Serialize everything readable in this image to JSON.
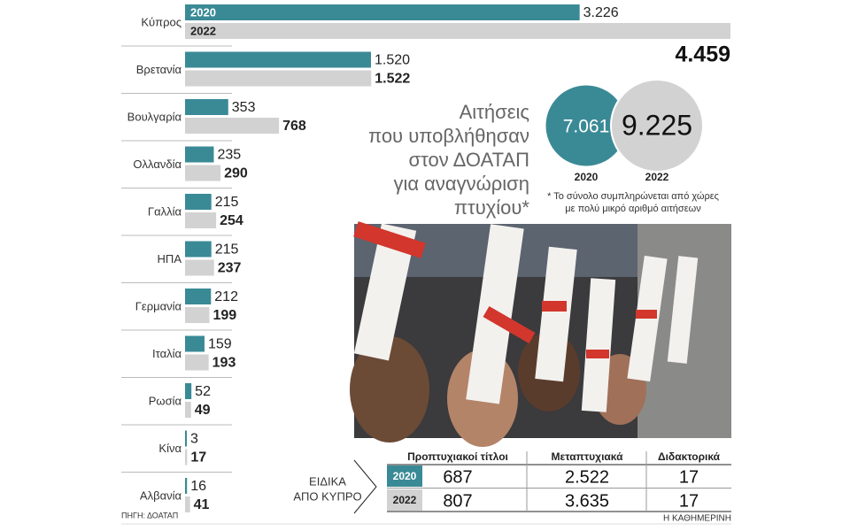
{
  "chart_data": {
    "type": "hbar",
    "title_lines": [
      "Αιτήσεις",
      "που υποβλήθησαν",
      "στον ΔΟΑΤΑΠ",
      "για αναγνώριση",
      "πτυχίου*"
    ],
    "categories": [
      "Κύπρος",
      "Βρετανία",
      "Βουλγαρία",
      "Ολλανδία",
      "Γαλλία",
      "ΗΠΑ",
      "Γερμανία",
      "Ιταλία",
      "Ρωσία",
      "Κίνα",
      "Αλβανία"
    ],
    "series": [
      {
        "name": "2020",
        "color": "#3a8a96",
        "values": [
          3226,
          1520,
          353,
          235,
          215,
          215,
          212,
          159,
          52,
          3,
          16
        ],
        "value_labels": [
          "3.226",
          "1.520",
          "353",
          "235",
          "215",
          "215",
          "212",
          "159",
          "52",
          "3",
          "16"
        ]
      },
      {
        "name": "2022",
        "color": "#d2d2d2",
        "values": [
          4459,
          1522,
          768,
          290,
          254,
          237,
          199,
          193,
          49,
          17,
          41
        ],
        "value_labels": [
          "4.459",
          "1.522",
          "768",
          "290",
          "254",
          "237",
          "199",
          "193",
          "49",
          "17",
          "41"
        ]
      }
    ],
    "totals": [
      {
        "name": "2020",
        "value": 7061,
        "value_label": "7.061",
        "color": "#3a8a96"
      },
      {
        "name": "2022",
        "value": 9225,
        "value_label": "9.225",
        "color": "#d2d2d2"
      }
    ],
    "footnote_lines": [
      "* Το σύνολο συμπληρώνεται από χώρες",
      "με πολύ μικρό αριθμό αιτήσεων"
    ],
    "source": "ΠΗΓΗ: ΔΟΑΤΑΠ",
    "brand": "Η ΚΑΘΗΜΕΡΙΝΗ"
  },
  "table": {
    "label_lines": [
      "ΕΙΔΙΚΑ",
      "ΑΠΟ ΚΥΠΡΟ"
    ],
    "columns": [
      "Προπτυχιακοί τίτλοι",
      "Μεταπτυχιακά",
      "Διδακτορικά"
    ],
    "rows": [
      {
        "year": "2020",
        "cells": [
          "687",
          "2.522",
          "17"
        ]
      },
      {
        "year": "2022",
        "cells": [
          "807",
          "3.635",
          "17"
        ]
      }
    ]
  }
}
